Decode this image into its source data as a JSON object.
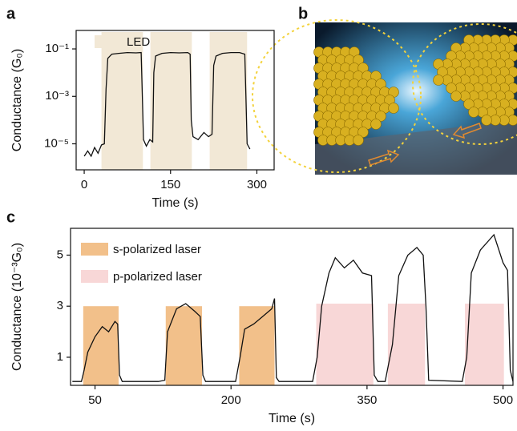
{
  "panel_labels": [
    "a",
    "b",
    "c"
  ],
  "chart_data": [
    {
      "type": "line",
      "ylog": true,
      "xlabel": "Time (s)",
      "ylabel": "Conductance (G₀)",
      "xlim": [
        -14,
        330
      ],
      "xticks": [
        0,
        150,
        300
      ],
      "ylim": [
        8e-07,
        0.6
      ],
      "yticks": [
        {
          "value": 1e-05,
          "label": "10⁻⁵"
        },
        {
          "value": 0.001,
          "label": "10⁻³"
        },
        {
          "value": 0.1,
          "label": "10⁻¹"
        }
      ],
      "bands": [
        {
          "name": "LED",
          "color": "#f2e8d6",
          "ranges": [
            [
              30,
              102
            ],
            [
              115,
              187
            ],
            [
              218,
              283
            ]
          ]
        }
      ],
      "series": [
        {
          "color": "#111111",
          "x": [
            0,
            6,
            12,
            18,
            24,
            30,
            35,
            38,
            41,
            48,
            60,
            75,
            90,
            99,
            101,
            103,
            108,
            114,
            119,
            121,
            124,
            135,
            150,
            165,
            180,
            184,
            186,
            189,
            198,
            208,
            216,
            222,
            225,
            229,
            240,
            255,
            270,
            279,
            281,
            283,
            288
          ],
          "values": [
            3e-06,
            5e-06,
            3e-06,
            7e-06,
            4e-06,
            9e-06,
            1e-05,
            0.002,
            0.04,
            0.06,
            0.065,
            0.07,
            0.068,
            0.07,
            0.001,
            1.5e-05,
            8e-06,
            1.5e-05,
            1.2e-05,
            0.01,
            0.05,
            0.065,
            0.07,
            0.068,
            0.07,
            0.06,
            0.0001,
            2e-05,
            1.5e-05,
            3e-05,
            2e-05,
            2.5e-05,
            0.02,
            0.05,
            0.065,
            0.07,
            0.07,
            0.06,
            0.001,
            1e-05,
            6e-06
          ]
        }
      ]
    },
    {
      "type": "line",
      "xlabel": "Time (s)",
      "ylabel": "Conductance (10⁻³G₀)",
      "xlim": [
        23,
        511
      ],
      "xticks": [
        50,
        200,
        350,
        500
      ],
      "ylim": [
        -0.1,
        6.05
      ],
      "yticks": [
        1,
        3,
        5
      ],
      "bands": [
        {
          "name": "s-polarized laser",
          "color": "#f2c08a",
          "ranges": [
            [
              37,
              76,
              3.0
            ],
            [
              128,
              168,
              3.0
            ],
            [
              209,
              248,
              3.0
            ]
          ]
        },
        {
          "name": "p-polarized laser",
          "color": "#f8d7d7",
          "ranges": [
            [
              294,
              357,
              3.1
            ],
            [
              373,
              414,
              3.1
            ],
            [
              458,
              501,
              3.1
            ]
          ]
        }
      ],
      "series": [
        {
          "color": "#111111",
          "x": [
            25,
            35,
            38,
            42,
            50,
            58,
            65,
            72,
            75,
            77,
            80,
            120,
            127,
            130,
            140,
            150,
            160,
            166,
            169,
            172,
            205,
            210,
            215,
            225,
            235,
            245,
            248,
            250,
            253,
            290,
            295,
            300,
            308,
            315,
            325,
            335,
            345,
            355,
            358,
            362,
            370,
            378,
            385,
            395,
            405,
            412,
            415,
            418,
            455,
            460,
            465,
            475,
            490,
            500,
            505,
            508,
            511
          ],
          "values": [
            0.05,
            0.05,
            0.5,
            1.2,
            1.8,
            2.2,
            2.0,
            2.4,
            2.3,
            0.3,
            0.05,
            0.05,
            0.1,
            2.0,
            2.9,
            3.1,
            2.8,
            2.6,
            0.3,
            0.05,
            0.05,
            1.0,
            2.1,
            2.3,
            2.6,
            2.9,
            3.3,
            0.2,
            0.05,
            0.05,
            1.0,
            3.0,
            4.3,
            4.9,
            4.5,
            4.8,
            4.3,
            4.2,
            0.3,
            0.05,
            0.05,
            1.5,
            4.2,
            5.0,
            5.3,
            5.0,
            3.0,
            0.1,
            0.05,
            1.0,
            4.3,
            5.2,
            5.8,
            4.7,
            4.4,
            0.5,
            0.05
          ]
        }
      ]
    }
  ]
}
